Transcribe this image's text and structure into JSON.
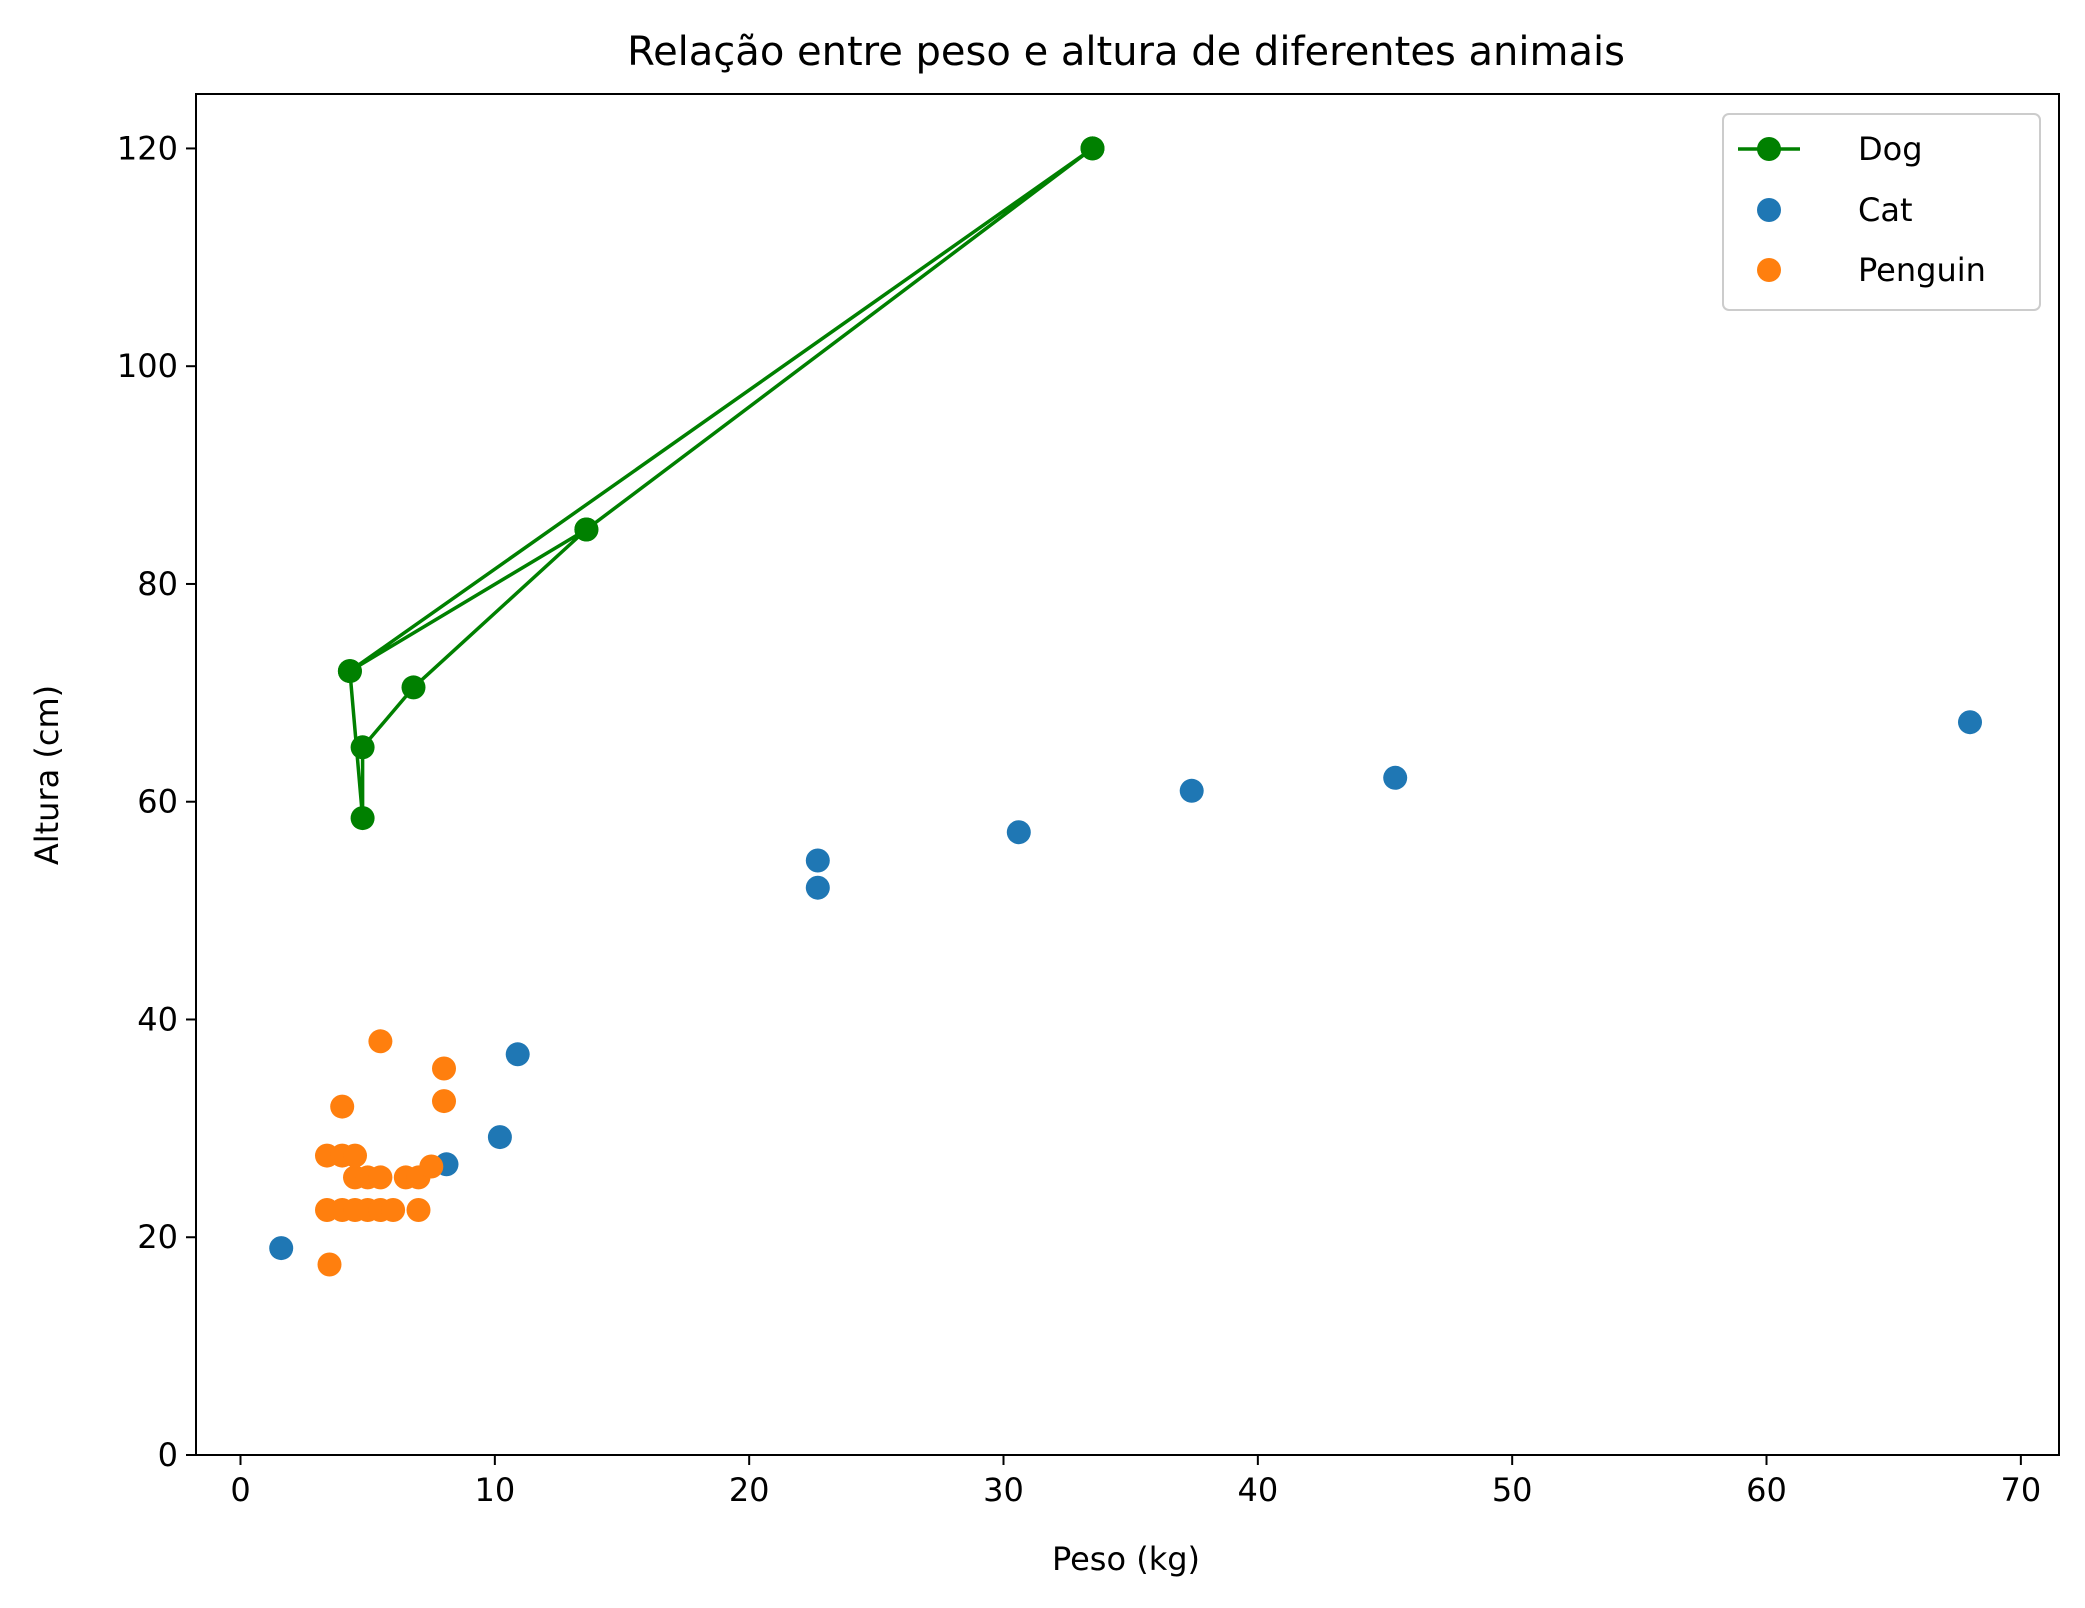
{
  "chart_data": {
    "type": "scatter",
    "title": "Relação entre peso e altura de diferentes animais",
    "xlabel": "Peso (kg)",
    "ylabel": "Altura (cm)",
    "xlim": [
      -1.75,
      71.5
    ],
    "ylim": [
      0,
      125
    ],
    "xticks": [
      0,
      10,
      20,
      30,
      40,
      50,
      60,
      70
    ],
    "yticks": [
      0,
      20,
      40,
      60,
      80,
      100,
      120
    ],
    "grid": false,
    "legend_position": "top-right",
    "series": [
      {
        "name": "Dog",
        "kind": "line-markers",
        "color": "#008000",
        "points": [
          [
            4.3,
            72.0
          ],
          [
            33.5,
            120.0
          ],
          [
            13.6,
            85.0
          ],
          [
            6.8,
            70.5
          ],
          [
            4.8,
            65.0
          ],
          [
            4.8,
            58.5
          ],
          [
            4.3,
            72.0
          ],
          [
            13.6,
            85.0
          ],
          [
            33.5,
            120.0
          ]
        ]
      },
      {
        "name": "Cat",
        "kind": "scatter",
        "color": "#1f77b4",
        "points": [
          [
            1.6,
            19.0
          ],
          [
            8.1,
            26.7
          ],
          [
            10.2,
            29.2
          ],
          [
            10.9,
            36.8
          ],
          [
            22.7,
            52.1
          ],
          [
            22.7,
            54.6
          ],
          [
            30.6,
            57.2
          ],
          [
            37.4,
            61.0
          ],
          [
            45.4,
            62.2
          ],
          [
            68.0,
            67.3
          ]
        ]
      },
      {
        "name": "Penguin",
        "kind": "scatter",
        "color": "#ff7f0e",
        "points": [
          [
            3.5,
            17.5
          ],
          [
            3.4,
            22.5
          ],
          [
            4.0,
            22.5
          ],
          [
            4.5,
            22.5
          ],
          [
            5.0,
            22.5
          ],
          [
            5.5,
            22.5
          ],
          [
            6.0,
            22.5
          ],
          [
            7.0,
            22.5
          ],
          [
            4.5,
            25.5
          ],
          [
            5.0,
            25.5
          ],
          [
            5.5,
            25.5
          ],
          [
            6.5,
            25.5
          ],
          [
            7.0,
            25.5
          ],
          [
            7.5,
            26.5
          ],
          [
            3.4,
            27.5
          ],
          [
            4.0,
            27.5
          ],
          [
            4.5,
            27.5
          ],
          [
            4.0,
            32.0
          ],
          [
            5.5,
            38.0
          ],
          [
            8.0,
            32.5
          ],
          [
            8.0,
            35.5
          ]
        ]
      }
    ]
  }
}
